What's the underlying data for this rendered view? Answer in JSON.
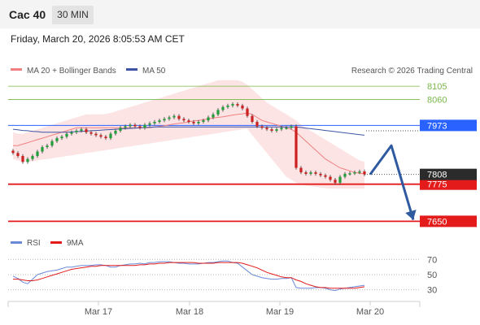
{
  "header": {
    "title": "Cac 40",
    "timeframe": "30 MIN",
    "timestamp": "Friday, March 20, 2026 8:05:53 AM CET"
  },
  "legend": {
    "ma20": "MA 20 + Bollinger Bands",
    "ma50": "MA 50",
    "credit": "Research © 2026 Trading Central",
    "rsi": "RSI",
    "rsi_ma": "9MA"
  },
  "colors": {
    "bull": "#1f9e3a",
    "bear": "#cc2020",
    "ma20": "#f08080",
    "ma50": "#3b55a4",
    "band": "#fcd9d9",
    "resistance": "#7ab648",
    "support": "#e31b1b",
    "pivot": "#2962ff",
    "arrow": "#2f5aa0",
    "last": "#2b2b2b",
    "rsi": "#6a8ad8",
    "rsi_ma": "#e31b1b"
  },
  "chart_data": {
    "type": "candlestick",
    "y_range": [
      7610,
      8130
    ],
    "x_labels": [
      "Mar 17",
      "Mar 18",
      "Mar 19",
      "Mar 20"
    ],
    "levels": [
      {
        "value": 8105,
        "label": "8105",
        "kind": "resistance"
      },
      {
        "value": 8060,
        "label": "8060",
        "kind": "resistance"
      },
      {
        "value": 7973,
        "label": "7973",
        "kind": "pivot"
      },
      {
        "value": 7775,
        "label": "7775",
        "kind": "support"
      },
      {
        "value": 7650,
        "label": "7650",
        "kind": "support"
      }
    ],
    "last_price": {
      "value": 7808,
      "label": "7808"
    },
    "close": [
      7880,
      7870,
      7850,
      7860,
      7870,
      7885,
      7900,
      7905,
      7920,
      7930,
      7935,
      7945,
      7950,
      7955,
      7960,
      7950,
      7945,
      7940,
      7935,
      7930,
      7945,
      7955,
      7965,
      7970,
      7975,
      7970,
      7965,
      7975,
      7980,
      7985,
      7990,
      7995,
      8000,
      8005,
      7995,
      7990,
      7985,
      7980,
      7985,
      7990,
      8000,
      8010,
      8025,
      8035,
      8040,
      8045,
      8040,
      8030,
      8005,
      7985,
      7970,
      7965,
      7960,
      7955,
      7960,
      7965,
      7965,
      7970,
      7830,
      7815,
      7810,
      7815,
      7810,
      7805,
      7800,
      7790,
      7780,
      7800,
      7810,
      7812,
      7815,
      7818,
      7808
    ],
    "ma20": [
      7905,
      7905,
      7910,
      7915,
      7920,
      7925,
      7930,
      7935,
      7940,
      7945,
      7950,
      7955,
      7960,
      7965,
      7965,
      7965,
      7965,
      7965,
      7965,
      7965,
      7965,
      7965,
      7965,
      7965,
      7965,
      7965,
      7965,
      7965,
      7965,
      7968,
      7970,
      7972,
      7975,
      7978,
      7980,
      7982,
      7985,
      7988,
      7990,
      7992,
      7995,
      7998,
      8000,
      8002,
      8005,
      8008,
      8010,
      8012,
      8015,
      8010,
      8000,
      7990,
      7985,
      7980,
      7975,
      7970,
      7965,
      7960,
      7950,
      7935,
      7920,
      7905,
      7890,
      7875,
      7860,
      7850,
      7840,
      7830,
      7825,
      7820,
      7815,
      7812,
      7810
    ],
    "ma50": [
      7960,
      7958,
      7956,
      7955,
      7953,
      7952,
      7950,
      7950,
      7950,
      7950,
      7950,
      7950,
      7951,
      7952,
      7953,
      7954,
      7955,
      7956,
      7957,
      7958,
      7959,
      7960,
      7961,
      7962,
      7963,
      7964,
      7965,
      7966,
      7967,
      7968,
      7968,
      7968,
      7968,
      7968,
      7968,
      7968,
      7968,
      7968,
      7968,
      7968,
      7968,
      7968,
      7968,
      7968,
      7968,
      7968,
      7968,
      7968,
      7968,
      7968,
      7968,
      7968,
      7968,
      7968,
      7968,
      7968,
      7968,
      7968,
      7968,
      7966,
      7964,
      7962,
      7960,
      7958,
      7956,
      7954,
      7952,
      7950,
      7948,
      7946,
      7944,
      7942,
      7940
    ],
    "bb_upper": [
      7950,
      7945,
      7945,
      7950,
      7955,
      7960,
      7965,
      7970,
      7975,
      7980,
      7985,
      7990,
      7995,
      8000,
      8005,
      8010,
      8010,
      8010,
      8010,
      8012,
      8015,
      8020,
      8025,
      8030,
      8035,
      8040,
      8045,
      8050,
      8055,
      8060,
      8065,
      8070,
      8075,
      8080,
      8085,
      8090,
      8095,
      8100,
      8105,
      8110,
      8115,
      8120,
      8125,
      8125,
      8125,
      8125,
      8125,
      8120,
      8110,
      8095,
      8080,
      8065,
      8050,
      8040,
      8030,
      8020,
      8010,
      8000,
      7990,
      7975,
      7965,
      7955,
      7945,
      7935,
      7925,
      7915,
      7905,
      7895,
      7885,
      7875,
      7865,
      7855,
      7850
    ],
    "bb_lower": [
      7860,
      7855,
      7850,
      7850,
      7852,
      7855,
      7858,
      7860,
      7862,
      7865,
      7867,
      7870,
      7872,
      7875,
      7877,
      7880,
      7882,
      7885,
      7887,
      7890,
      7892,
      7895,
      7897,
      7900,
      7902,
      7905,
      7907,
      7910,
      7912,
      7915,
      7917,
      7920,
      7922,
      7925,
      7927,
      7930,
      7932,
      7935,
      7937,
      7940,
      7942,
      7945,
      7947,
      7950,
      7952,
      7955,
      7957,
      7960,
      7962,
      7940,
      7920,
      7900,
      7880,
      7860,
      7840,
      7820,
      7800,
      7790,
      7780,
      7775,
      7770,
      7768,
      7766,
      7764,
      7762,
      7760,
      7760,
      7760,
      7760,
      7760,
      7760,
      7760,
      7760
    ],
    "rsi": {
      "y_range": [
        20,
        80
      ],
      "ticks": [
        30,
        50,
        70
      ],
      "values": [
        48,
        45,
        40,
        38,
        44,
        50,
        52,
        54,
        55,
        56,
        58,
        60,
        60,
        61,
        62,
        62,
        62,
        63,
        63,
        62,
        60,
        60,
        62,
        63,
        64,
        64,
        65,
        64,
        66,
        66,
        67,
        67,
        67,
        66,
        65,
        65,
        64,
        64,
        64,
        65,
        66,
        66,
        67,
        68,
        68,
        66,
        65,
        60,
        55,
        50,
        48,
        46,
        45,
        44,
        44,
        45,
        45,
        46,
        33,
        32,
        32,
        32,
        33,
        33,
        32,
        30,
        29,
        31,
        32,
        33,
        34,
        35,
        36
      ],
      "ma": [
        44,
        44,
        43,
        42,
        42,
        43,
        45,
        47,
        49,
        51,
        53,
        55,
        57,
        58,
        59,
        60,
        61,
        61,
        62,
        62,
        62,
        62,
        62,
        62,
        62,
        62,
        63,
        63,
        64,
        64,
        65,
        65,
        66,
        66,
        66,
        66,
        66,
        66,
        65,
        65,
        65,
        65,
        66,
        66,
        66,
        66,
        66,
        65,
        63,
        61,
        59,
        56,
        53,
        51,
        49,
        47,
        46,
        46,
        43,
        41,
        38,
        36,
        34,
        33,
        33,
        32,
        32,
        32,
        32,
        32,
        32,
        33,
        34
      ]
    }
  }
}
